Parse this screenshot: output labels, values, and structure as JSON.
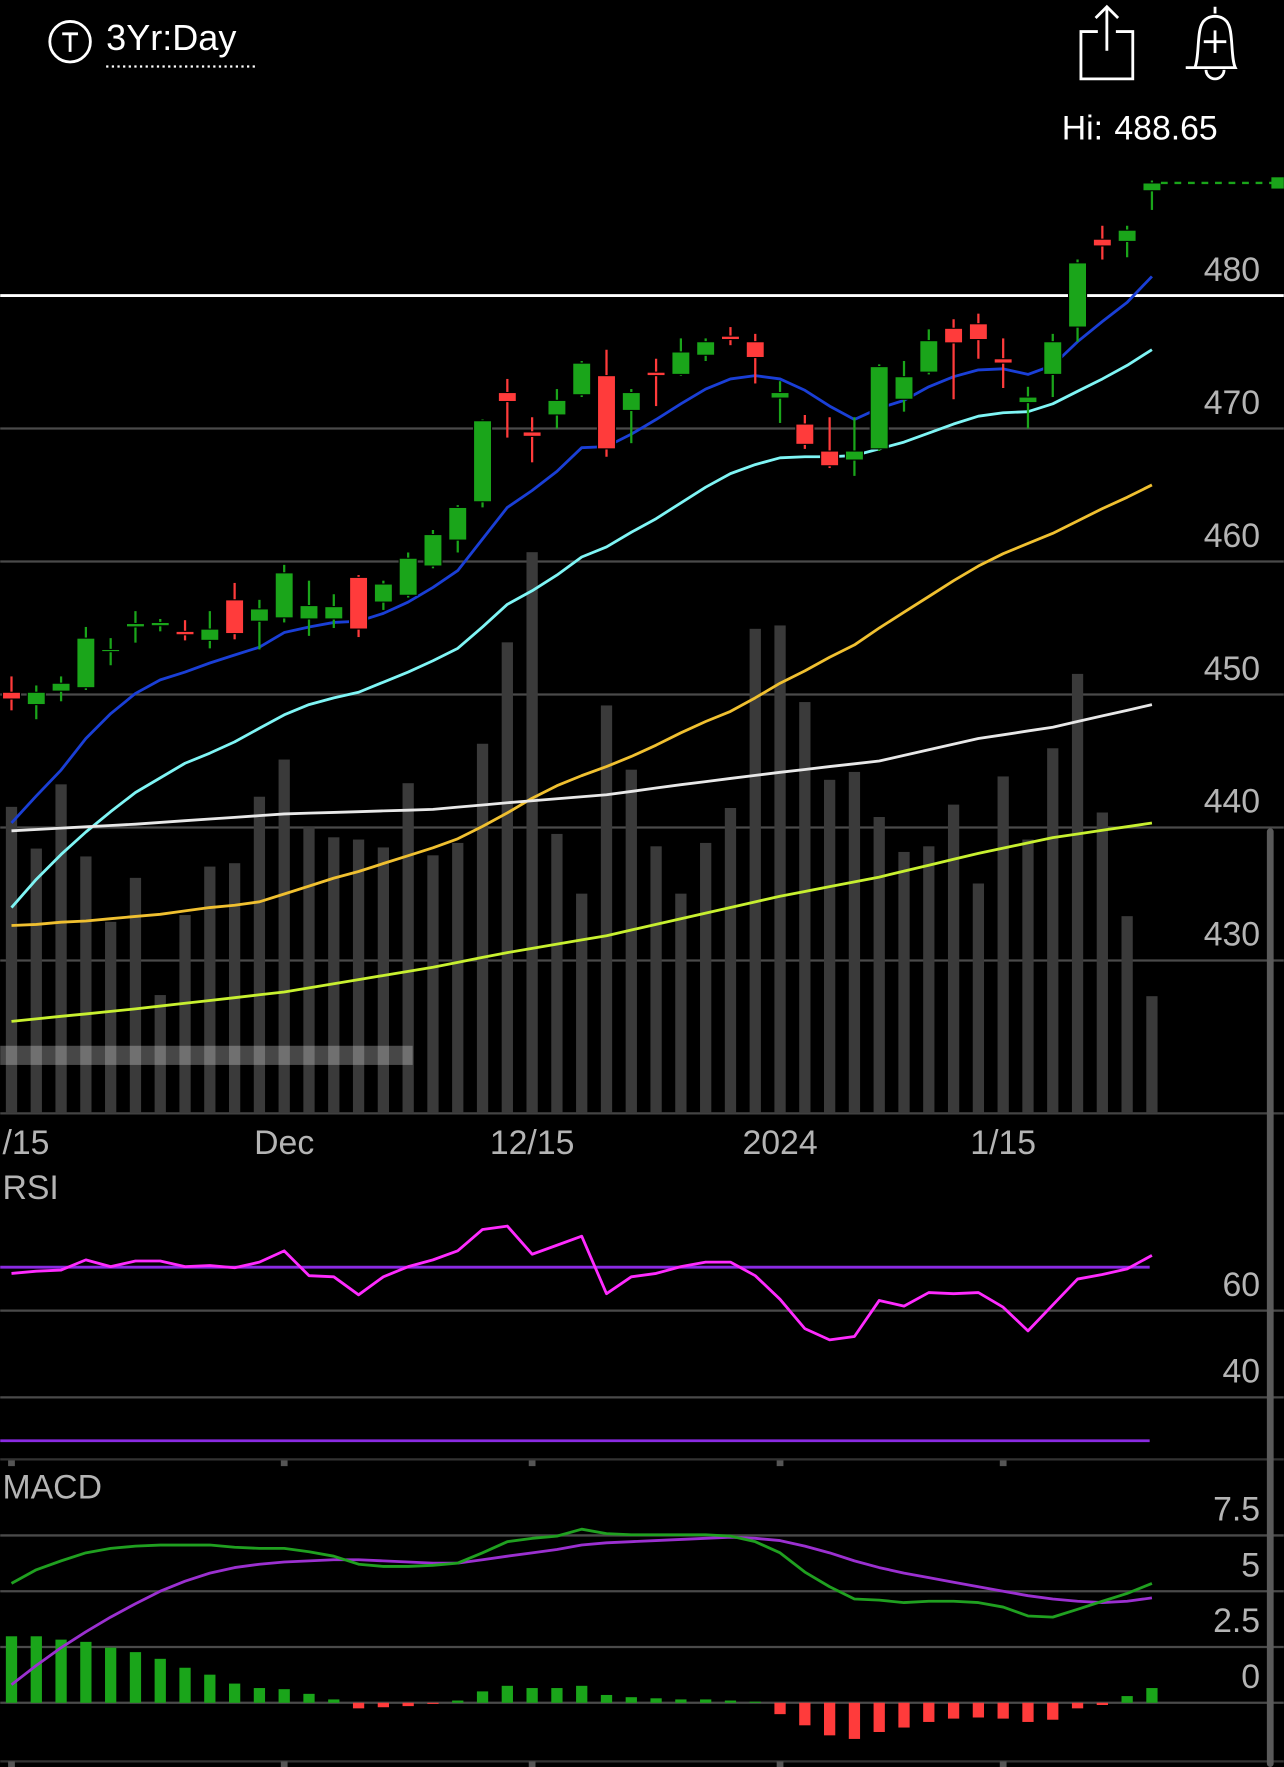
{
  "header": {
    "timeframe": "3Yr:Day",
    "hi_label": "Hi:",
    "hi": 488.65
  },
  "chart_data": [
    {
      "type": "candlestick",
      "categories": [
        "/15",
        null,
        null,
        null,
        null,
        null,
        null,
        null,
        null,
        null,
        null,
        "Dec",
        null,
        null,
        null,
        null,
        null,
        null,
        null,
        null,
        null,
        "12/15",
        null,
        null,
        null,
        null,
        null,
        null,
        null,
        null,
        null,
        "2024",
        null,
        null,
        null,
        null,
        null,
        null,
        null,
        null,
        "1/15",
        null,
        null,
        null,
        null,
        null,
        null
      ],
      "open": [
        450.17,
        449.24,
        450.25,
        450.51,
        453.22,
        455.08,
        455.17,
        454.75,
        454.07,
        457.12,
        455.51,
        455.76,
        455.68,
        455.68,
        458.81,
        456.95,
        457.46,
        459.66,
        461.61,
        464.49,
        472.71,
        469.75,
        471.02,
        472.54,
        473.98,
        471.36,
        474.24,
        474.07,
        475.51,
        476.95,
        476.53,
        472.29,
        470.34,
        468.31,
        467.63,
        468.47,
        472.2,
        474.24,
        477.54,
        477.88,
        475.25,
        471.95,
        474.07,
        477.63,
        484.24,
        484.07,
        487.88
      ],
      "high": [
        451.36,
        450.68,
        451.36,
        455.08,
        454.24,
        456.27,
        455.68,
        455.59,
        456.27,
        458.39,
        457.12,
        459.75,
        458.56,
        457.54,
        458.98,
        458.56,
        460.68,
        462.37,
        464.24,
        470.68,
        473.73,
        470.85,
        472.97,
        475.08,
        475.93,
        472.97,
        475.25,
        476.78,
        476.78,
        477.63,
        477.12,
        473.56,
        471.02,
        470.85,
        470.85,
        474.83,
        475.08,
        477.46,
        478.22,
        478.64,
        476.78,
        473.14,
        477.12,
        482.71,
        485.25,
        485.25,
        488.65
      ],
      "low": [
        448.81,
        448.14,
        449.49,
        450.34,
        452.2,
        453.9,
        454.75,
        454.07,
        453.47,
        454.15,
        453.39,
        455.42,
        454.41,
        455.0,
        454.32,
        456.36,
        457.29,
        459.49,
        460.68,
        464.07,
        469.32,
        467.46,
        470.0,
        472.37,
        467.88,
        468.9,
        471.69,
        473.98,
        475.08,
        476.27,
        473.39,
        470.42,
        468.47,
        467.03,
        466.44,
        468.31,
        471.27,
        474.07,
        472.2,
        475.25,
        473.05,
        470.0,
        472.37,
        476.53,
        482.71,
        482.88,
        486.44
      ],
      "close": [
        449.66,
        450.17,
        450.85,
        454.24,
        453.39,
        455.34,
        455.42,
        454.49,
        454.92,
        454.58,
        456.44,
        459.15,
        456.69,
        456.61,
        454.92,
        458.31,
        460.25,
        462.03,
        464.07,
        470.59,
        472.03,
        469.41,
        472.12,
        474.92,
        468.47,
        472.71,
        473.98,
        475.76,
        476.53,
        476.69,
        475.34,
        472.71,
        468.81,
        467.2,
        468.31,
        474.66,
        473.9,
        476.61,
        476.44,
        476.69,
        474.92,
        472.37,
        476.53,
        482.46,
        483.73,
        484.92,
        488.47
      ],
      "up_color": "#1aa51a",
      "down_color": "#ff3b3b",
      "ylim": [
        418.5,
        494.6
      ],
      "yticks": [
        430,
        440,
        450,
        460,
        470,
        480
      ],
      "hline": {
        "value": 480,
        "color": "#ffffff"
      },
      "series": [
        {
          "color": "#1a3fd6",
          "values": [
            440.34,
            442.37,
            444.32,
            446.69,
            448.56,
            450.08,
            451.1,
            451.69,
            452.37,
            452.97,
            453.56,
            454.66,
            455.08,
            455.42,
            455.51,
            456.1,
            456.95,
            458.05,
            459.32,
            461.69,
            464.07,
            465.34,
            466.78,
            468.56,
            468.64,
            469.58,
            470.68,
            471.86,
            472.97,
            473.73,
            473.98,
            473.73,
            472.88,
            471.69,
            470.68,
            471.53,
            472.12,
            473.14,
            473.9,
            474.41,
            474.49,
            474.07,
            474.75,
            476.53,
            478.05,
            479.49,
            481.44
          ]
        },
        {
          "color": "#7ff5f5",
          "values": [
            433.98,
            436.1,
            437.97,
            439.66,
            441.19,
            442.63,
            443.73,
            444.83,
            445.59,
            446.44,
            447.46,
            448.47,
            449.24,
            449.75,
            450.17,
            450.93,
            451.69,
            452.54,
            453.47,
            455.08,
            456.78,
            457.8,
            458.98,
            460.34,
            461.1,
            462.2,
            463.22,
            464.41,
            465.59,
            466.61,
            467.29,
            467.8,
            467.88,
            467.88,
            467.97,
            468.47,
            468.98,
            469.66,
            470.34,
            470.93,
            471.19,
            471.27,
            471.86,
            472.8,
            473.73,
            474.75,
            475.93
          ]
        },
        {
          "color": "#f0c030",
          "values": [
            432.63,
            432.71,
            432.88,
            432.97,
            433.14,
            433.31,
            433.47,
            433.73,
            433.98,
            434.15,
            434.41,
            435.0,
            435.59,
            436.19,
            436.69,
            437.29,
            437.88,
            438.47,
            439.15,
            440.08,
            441.1,
            442.2,
            443.14,
            443.9,
            444.58,
            445.34,
            446.19,
            447.12,
            447.97,
            448.73,
            449.75,
            450.85,
            451.78,
            452.8,
            453.73,
            455.0,
            456.19,
            457.37,
            458.56,
            459.66,
            460.59,
            461.36,
            462.12,
            463.05,
            463.98,
            464.83,
            465.76
          ]
        },
        {
          "color": "#e8e8e8",
          "values": [
            439.75,
            439.85,
            439.95,
            440.05,
            440.15,
            440.25,
            440.38,
            440.51,
            440.64,
            440.76,
            440.89,
            441.02,
            441.08,
            441.13,
            441.19,
            441.25,
            441.3,
            441.36,
            441.53,
            441.69,
            441.86,
            442.01,
            442.16,
            442.31,
            442.46,
            442.71,
            442.97,
            443.22,
            443.45,
            443.69,
            443.92,
            444.15,
            444.36,
            444.58,
            444.79,
            445.0,
            445.42,
            445.85,
            446.27,
            446.69,
            446.97,
            447.26,
            447.54,
            447.97,
            448.39,
            448.81,
            449.24
          ]
        },
        {
          "color": "#c8f030",
          "values": [
            425.42,
            425.61,
            425.8,
            425.98,
            426.17,
            426.36,
            426.57,
            426.78,
            426.99,
            427.2,
            427.42,
            427.63,
            427.94,
            428.25,
            428.56,
            428.87,
            429.18,
            429.49,
            429.86,
            430.23,
            430.59,
            430.91,
            431.23,
            431.55,
            431.86,
            432.29,
            432.71,
            433.14,
            433.56,
            433.98,
            434.41,
            434.83,
            435.19,
            435.55,
            435.91,
            436.27,
            436.72,
            437.16,
            437.61,
            438.05,
            438.45,
            438.84,
            439.24,
            439.51,
            439.79,
            440.06,
            440.34
          ]
        }
      ],
      "volume": {
        "color": "#3a3a3a",
        "vlim": [
          0,
          100
        ],
        "values": [
          54.4,
          47,
          58.4,
          45.6,
          34,
          41.8,
          21,
          35.2,
          43.8,
          44.4,
          56.2,
          62.8,
          50.8,
          49,
          48.6,
          47.2,
          58.6,
          45.8,
          48,
          65.6,
          83.6,
          99.6,
          49.6,
          39,
          72.4,
          61,
          47.4,
          39,
          48,
          54.2,
          86,
          86.6,
          73,
          59.2,
          60.6,
          52.6,
          46.4,
          47.4,
          54.8,
          40.8,
          59.8,
          48.6,
          64.8,
          78,
          53.4,
          35,
          20.8
        ]
      }
    },
    {
      "type": "line",
      "title": "RSI",
      "color": "#ff2bff",
      "values": [
        68.57,
        69.09,
        69.35,
        71.69,
        70.13,
        71.43,
        71.43,
        70.13,
        70.39,
        69.87,
        71.17,
        73.77,
        68.05,
        67.79,
        63.64,
        67.79,
        70.13,
        71.69,
        73.77,
        78.7,
        79.48,
        72.99,
        75.06,
        77.14,
        63.9,
        67.79,
        68.57,
        70.13,
        71.17,
        71.17,
        68.05,
        62.6,
        55.84,
        53.25,
        54.03,
        62.34,
        61.04,
        64.16,
        63.9,
        64.16,
        60.78,
        55.32,
        61.3,
        67.27,
        68.31,
        69.61,
        72.73
      ],
      "ylim": [
        26,
        92
      ],
      "yticks": [
        40,
        60
      ],
      "levels": [
        30,
        70
      ],
      "level_color": "#8a2be2"
    },
    {
      "type": "macd",
      "title": "MACD",
      "macd": [
        5.35,
        5.96,
        6.36,
        6.72,
        6.92,
        7.02,
        7.07,
        7.07,
        7.07,
        6.97,
        6.92,
        6.92,
        6.77,
        6.57,
        6.21,
        6.11,
        6.11,
        6.16,
        6.26,
        6.72,
        7.22,
        7.37,
        7.47,
        7.78,
        7.58,
        7.53,
        7.53,
        7.53,
        7.53,
        7.47,
        7.22,
        6.72,
        5.86,
        5.2,
        4.65,
        4.6,
        4.49,
        4.55,
        4.55,
        4.49,
        4.29,
        3.89,
        3.84,
        4.19,
        4.55,
        4.9,
        5.35
      ],
      "signal": [
        0.81,
        1.67,
        2.47,
        3.18,
        3.84,
        4.44,
        5.0,
        5.45,
        5.81,
        6.06,
        6.21,
        6.31,
        6.36,
        6.41,
        6.41,
        6.36,
        6.31,
        6.26,
        6.26,
        6.41,
        6.57,
        6.72,
        6.87,
        7.07,
        7.17,
        7.22,
        7.27,
        7.32,
        7.37,
        7.42,
        7.37,
        7.27,
        7.02,
        6.72,
        6.36,
        6.06,
        5.81,
        5.61,
        5.4,
        5.2,
        5.0,
        4.8,
        4.65,
        4.55,
        4.49,
        4.55,
        4.7
      ],
      "histogram": [
        2.98,
        2.98,
        2.83,
        2.73,
        2.47,
        2.27,
        1.97,
        1.57,
        1.26,
        0.86,
        0.66,
        0.61,
        0.4,
        0.15,
        -0.25,
        -0.2,
        -0.15,
        -0.05,
        0.1,
        0.51,
        0.76,
        0.66,
        0.66,
        0.76,
        0.35,
        0.25,
        0.2,
        0.15,
        0.15,
        0.1,
        0.05,
        -0.51,
        -1.01,
        -1.46,
        -1.62,
        -1.31,
        -1.11,
        -0.86,
        -0.71,
        -0.66,
        -0.71,
        -0.86,
        -0.76,
        -0.25,
        -0.1,
        0.3,
        0.66
      ],
      "macd_color": "#20a020",
      "signal_color": "#9b30d0",
      "up_color": "#1aa51a",
      "down_color": "#ff3b3b",
      "zero_color": "#e030e0",
      "ylim": [
        -2.5,
        10.4
      ],
      "yticks": [
        0,
        2.5,
        5,
        7.5
      ]
    }
  ]
}
